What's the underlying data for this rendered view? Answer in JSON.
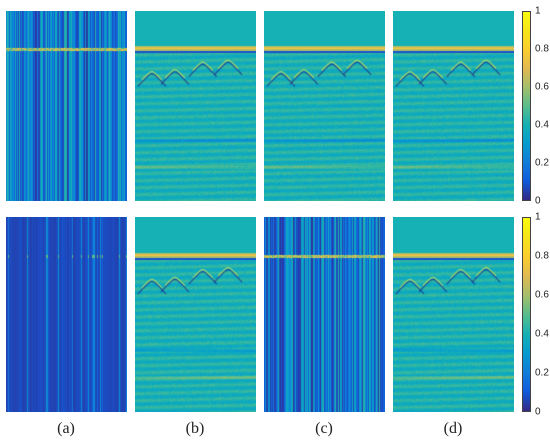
{
  "panel_labels": [
    "(a)",
    "(b)",
    "(c)",
    "(d)"
  ],
  "colorbar": {
    "ticks": [
      "1",
      "0.8",
      "0.6",
      "0.4",
      "0.2",
      "0"
    ],
    "colormap": "parula",
    "range": [
      0,
      1
    ]
  },
  "rows": [
    {
      "panels": [
        {
          "style": "corrupted-striped",
          "stripe_density": "medium"
        },
        {
          "style": "reconstructed"
        },
        {
          "style": "reconstructed"
        },
        {
          "style": "reconstructed"
        }
      ]
    },
    {
      "panels": [
        {
          "style": "corrupted-dense"
        },
        {
          "style": "reconstructed"
        },
        {
          "style": "corrupted-striped",
          "stripe_density": "high"
        },
        {
          "style": "reconstructed"
        }
      ]
    }
  ]
}
